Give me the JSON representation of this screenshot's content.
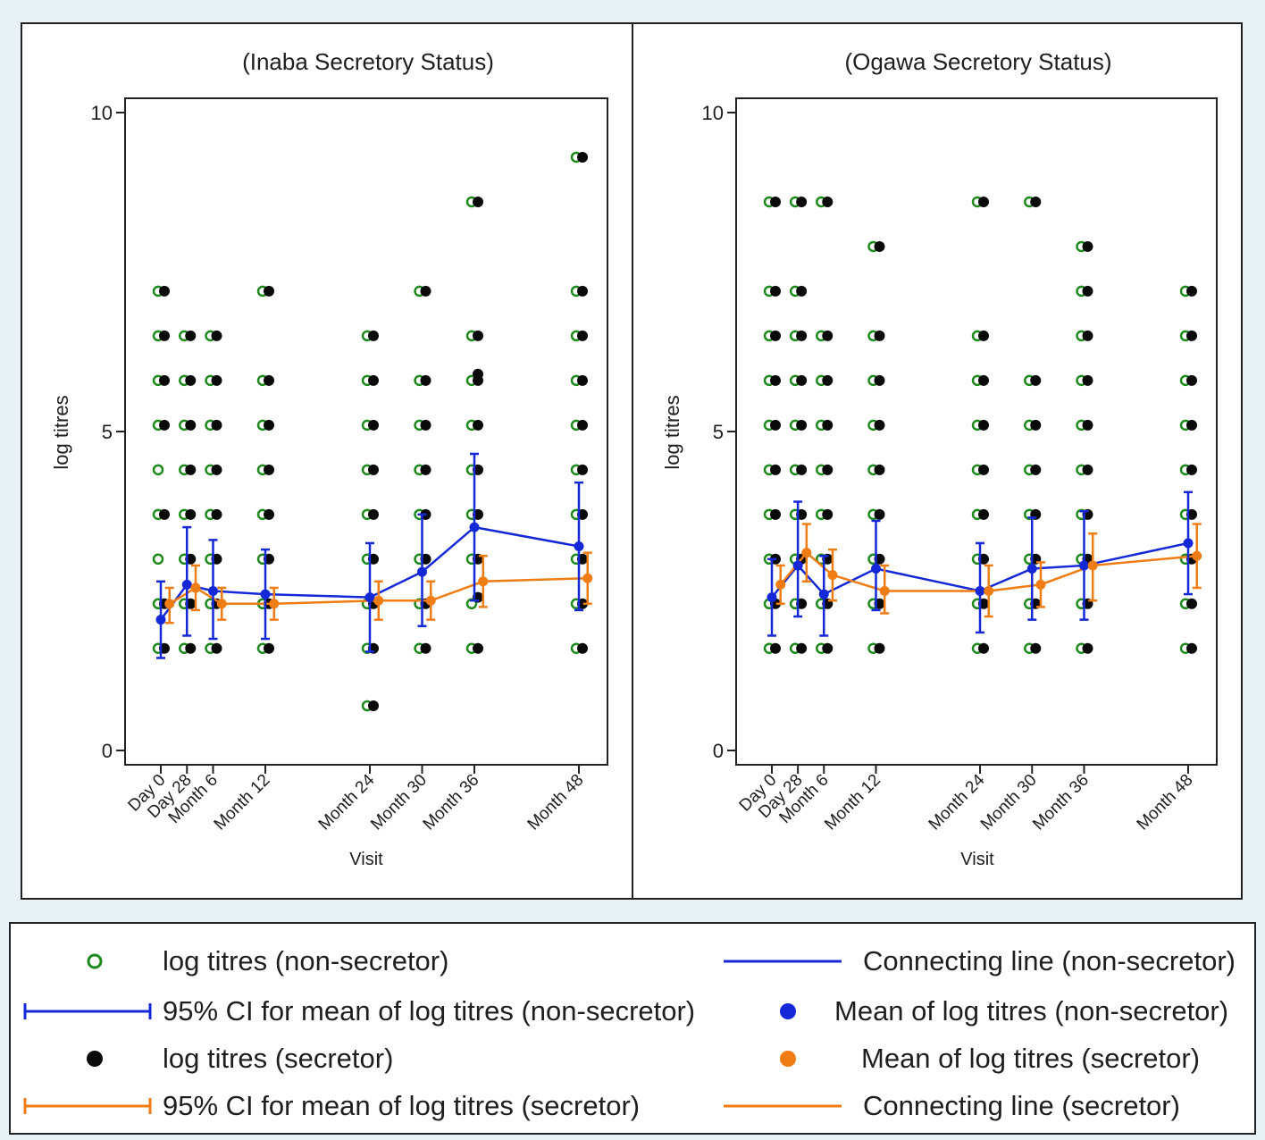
{
  "chart_data": [
    {
      "type": "scatter",
      "title": "(Inaba Secretory Status)",
      "xlabel": "Visit",
      "ylabel": "log titres",
      "ylim": [
        0,
        10
      ],
      "yticks": [
        0,
        5,
        10
      ],
      "visits": [
        {
          "label": "Day 0",
          "x": 0
        },
        {
          "label": "Day 28",
          "x": 1
        },
        {
          "label": "Month 6",
          "x": 6
        },
        {
          "label": "Month 12",
          "x": 12
        },
        {
          "label": "Month 24",
          "x": 24
        },
        {
          "label": "Month 30",
          "x": 30
        },
        {
          "label": "Month 36",
          "x": 36
        },
        {
          "label": "Month 48",
          "x": 48
        }
      ],
      "xlim": [
        -4,
        52
      ],
      "non_secretor_points": [
        {
          "x": 0,
          "y": [
            1.6,
            2.3,
            3.0,
            3.7,
            4.4,
            5.1,
            5.8,
            6.5,
            7.2
          ]
        },
        {
          "x": 3,
          "y": [
            1.6,
            2.3,
            3.0,
            3.7,
            4.4,
            5.1,
            5.8,
            6.5
          ]
        },
        {
          "x": 6,
          "y": [
            1.6,
            2.3,
            3.0,
            3.7,
            4.4,
            5.1,
            5.8,
            6.5
          ]
        },
        {
          "x": 12,
          "y": [
            1.6,
            2.3,
            3.0,
            3.7,
            4.4,
            5.1,
            5.8,
            7.2
          ]
        },
        {
          "x": 24,
          "y": [
            0.7,
            1.6,
            2.3,
            3.0,
            3.7,
            4.4,
            5.1,
            5.8,
            6.5
          ]
        },
        {
          "x": 30,
          "y": [
            1.6,
            2.3,
            3.0,
            3.7,
            4.4,
            5.1,
            5.8,
            7.2
          ]
        },
        {
          "x": 36,
          "y": [
            1.6,
            2.3,
            3.0,
            3.7,
            4.4,
            5.1,
            5.8,
            6.5,
            8.6
          ]
        },
        {
          "x": 48,
          "y": [
            1.6,
            2.3,
            3.0,
            3.7,
            4.4,
            5.1,
            5.8,
            6.5,
            7.2,
            9.3
          ]
        }
      ],
      "secretor_points": [
        {
          "x": 0,
          "y": [
            1.6,
            2.3,
            3.7,
            5.1,
            5.8,
            6.5,
            7.2
          ]
        },
        {
          "x": 3,
          "y": [
            1.6,
            2.3,
            3.0,
            3.7,
            4.4,
            5.1,
            5.8,
            6.5
          ]
        },
        {
          "x": 6,
          "y": [
            1.6,
            2.3,
            3.0,
            3.7,
            4.4,
            5.1,
            5.8,
            6.5
          ]
        },
        {
          "x": 12,
          "y": [
            1.6,
            2.3,
            3.0,
            3.7,
            4.4,
            5.1,
            5.8,
            7.2
          ]
        },
        {
          "x": 24,
          "y": [
            0.7,
            1.6,
            2.3,
            3.0,
            3.7,
            4.4,
            5.1,
            5.8,
            6.5
          ]
        },
        {
          "x": 30,
          "y": [
            1.6,
            2.3,
            3.0,
            3.7,
            4.4,
            5.1,
            5.8,
            7.2
          ]
        },
        {
          "x": 36,
          "y": [
            1.6,
            2.4,
            3.0,
            3.7,
            4.4,
            5.1,
            5.8,
            5.9,
            6.5,
            8.6
          ]
        },
        {
          "x": 48,
          "y": [
            1.6,
            2.3,
            3.0,
            3.7,
            4.4,
            5.1,
            5.8,
            6.5,
            7.2,
            9.3
          ]
        }
      ],
      "non_secretor_mean": [
        {
          "x": 0,
          "mean": 2.05,
          "lo": 1.45,
          "hi": 2.65
        },
        {
          "x": 3,
          "mean": 2.6,
          "lo": 1.8,
          "hi": 3.5
        },
        {
          "x": 6,
          "mean": 2.5,
          "lo": 1.75,
          "hi": 3.3
        },
        {
          "x": 12,
          "mean": 2.45,
          "lo": 1.75,
          "hi": 3.15
        },
        {
          "x": 24,
          "mean": 2.4,
          "lo": 1.55,
          "hi": 3.25
        },
        {
          "x": 30,
          "mean": 2.8,
          "lo": 1.95,
          "hi": 3.7
        },
        {
          "x": 36,
          "mean": 3.5,
          "lo": 2.35,
          "hi": 4.65
        },
        {
          "x": 48,
          "mean": 3.2,
          "lo": 2.2,
          "hi": 4.2
        }
      ],
      "secretor_mean": [
        {
          "x": 1,
          "mean": 2.3,
          "lo": 2.0,
          "hi": 2.55
        },
        {
          "x": 4,
          "mean": 2.55,
          "lo": 2.2,
          "hi": 2.9
        },
        {
          "x": 7,
          "mean": 2.3,
          "lo": 2.05,
          "hi": 2.55
        },
        {
          "x": 13,
          "mean": 2.3,
          "lo": 2.05,
          "hi": 2.55
        },
        {
          "x": 25,
          "mean": 2.35,
          "lo": 2.05,
          "hi": 2.65
        },
        {
          "x": 31,
          "mean": 2.35,
          "lo": 2.05,
          "hi": 2.65
        },
        {
          "x": 37,
          "mean": 2.65,
          "lo": 2.25,
          "hi": 3.05
        },
        {
          "x": 49,
          "mean": 2.7,
          "lo": 2.3,
          "hi": 3.1
        }
      ]
    },
    {
      "type": "scatter",
      "title": "(Ogawa Secretory Status)",
      "xlabel": "Visit",
      "ylabel": "log titres",
      "ylim": [
        0,
        10
      ],
      "yticks": [
        0,
        5,
        10
      ],
      "visits": [
        {
          "label": "Day 0",
          "x": 0
        },
        {
          "label": "Day 28",
          "x": 1
        },
        {
          "label": "Month 6",
          "x": 6
        },
        {
          "label": "Month 12",
          "x": 12
        },
        {
          "label": "Month 24",
          "x": 24
        },
        {
          "label": "Month 30",
          "x": 30
        },
        {
          "label": "Month 36",
          "x": 36
        },
        {
          "label": "Month 48",
          "x": 48
        }
      ],
      "xlim": [
        -4,
        52
      ],
      "non_secretor_points": [
        {
          "x": 0,
          "y": [
            1.6,
            2.3,
            3.0,
            3.7,
            4.4,
            5.1,
            5.8,
            6.5,
            7.2,
            8.6
          ]
        },
        {
          "x": 3,
          "y": [
            1.6,
            2.3,
            3.0,
            3.7,
            4.4,
            5.1,
            5.8,
            6.5,
            7.2,
            8.6
          ]
        },
        {
          "x": 6,
          "y": [
            1.6,
            2.3,
            3.0,
            3.7,
            4.4,
            5.1,
            5.8,
            6.5,
            8.6
          ]
        },
        {
          "x": 12,
          "y": [
            1.6,
            2.3,
            3.0,
            3.7,
            4.4,
            5.1,
            5.8,
            6.5,
            7.9
          ]
        },
        {
          "x": 24,
          "y": [
            1.6,
            2.3,
            3.0,
            3.7,
            4.4,
            5.1,
            5.8,
            6.5,
            8.6
          ]
        },
        {
          "x": 30,
          "y": [
            1.6,
            2.3,
            3.0,
            3.7,
            4.4,
            5.1,
            5.8,
            8.6
          ]
        },
        {
          "x": 36,
          "y": [
            1.6,
            2.3,
            3.0,
            3.7,
            4.4,
            5.1,
            5.8,
            6.5,
            7.2,
            7.9
          ]
        },
        {
          "x": 48,
          "y": [
            1.6,
            2.3,
            3.0,
            3.7,
            4.4,
            5.1,
            5.8,
            6.5,
            7.2
          ]
        }
      ],
      "secretor_points": [
        {
          "x": 0,
          "y": [
            1.6,
            2.3,
            3.0,
            3.7,
            4.4,
            5.1,
            5.8,
            6.5,
            7.2,
            8.6
          ]
        },
        {
          "x": 3,
          "y": [
            1.6,
            2.3,
            3.0,
            3.7,
            4.4,
            5.1,
            5.8,
            6.5,
            7.2,
            8.6
          ]
        },
        {
          "x": 6,
          "y": [
            1.6,
            2.3,
            3.0,
            3.7,
            4.4,
            5.1,
            5.8,
            6.5,
            8.6
          ]
        },
        {
          "x": 12,
          "y": [
            1.6,
            2.3,
            3.0,
            3.7,
            4.4,
            5.1,
            5.8,
            6.5,
            7.9
          ]
        },
        {
          "x": 24,
          "y": [
            1.6,
            2.3,
            3.0,
            3.7,
            4.4,
            5.1,
            5.8,
            6.5,
            8.6
          ]
        },
        {
          "x": 30,
          "y": [
            1.6,
            2.3,
            3.0,
            3.7,
            4.4,
            5.1,
            5.8,
            8.6
          ]
        },
        {
          "x": 36,
          "y": [
            1.6,
            2.3,
            3.0,
            3.7,
            4.4,
            5.1,
            5.8,
            6.5,
            7.2,
            7.9
          ]
        },
        {
          "x": 48,
          "y": [
            1.6,
            2.3,
            3.0,
            3.7,
            4.4,
            5.1,
            5.8,
            6.5,
            7.2
          ]
        }
      ],
      "non_secretor_mean": [
        {
          "x": 0,
          "mean": 2.4,
          "lo": 1.8,
          "hi": 3.0
        },
        {
          "x": 3,
          "mean": 2.9,
          "lo": 2.1,
          "hi": 3.9
        },
        {
          "x": 6,
          "mean": 2.45,
          "lo": 1.8,
          "hi": 3.05
        },
        {
          "x": 12,
          "mean": 2.85,
          "lo": 2.2,
          "hi": 3.6
        },
        {
          "x": 24,
          "mean": 2.5,
          "lo": 1.85,
          "hi": 3.25
        },
        {
          "x": 30,
          "mean": 2.85,
          "lo": 2.05,
          "hi": 3.65
        },
        {
          "x": 36,
          "mean": 2.9,
          "lo": 2.05,
          "hi": 3.75
        },
        {
          "x": 48,
          "mean": 3.25,
          "lo": 2.45,
          "hi": 4.05
        }
      ],
      "secretor_mean": [
        {
          "x": 1,
          "mean": 2.6,
          "lo": 2.3,
          "hi": 2.9
        },
        {
          "x": 4,
          "mean": 3.1,
          "lo": 2.65,
          "hi": 3.55
        },
        {
          "x": 7,
          "mean": 2.75,
          "lo": 2.35,
          "hi": 3.15
        },
        {
          "x": 13,
          "mean": 2.5,
          "lo": 2.15,
          "hi": 2.9
        },
        {
          "x": 25,
          "mean": 2.5,
          "lo": 2.1,
          "hi": 2.9
        },
        {
          "x": 31,
          "mean": 2.6,
          "lo": 2.25,
          "hi": 2.95
        },
        {
          "x": 37,
          "mean": 2.9,
          "lo": 2.35,
          "hi": 3.4
        },
        {
          "x": 49,
          "mean": 3.05,
          "lo": 2.55,
          "hi": 3.55
        }
      ]
    }
  ],
  "colors": {
    "non_secretor_point": "#1e8a1e",
    "secretor_point": "#0a0a0a",
    "non_secretor_line": "#1428d8",
    "secretor_line": "#f07d14",
    "axis": "#222222",
    "text": "#1e1e1e"
  },
  "legend": {
    "items": [
      {
        "label": "log titres (non-secretor)",
        "symbol": "hollow-green-circle"
      },
      {
        "label": "Connecting line (non-secretor)",
        "symbol": "blue-line"
      },
      {
        "label": "95% CI for mean of log titres (non-secretor)",
        "symbol": "blue-capped-line"
      },
      {
        "label": "Mean of log titres (non-secretor)",
        "symbol": "blue-dot"
      },
      {
        "label": "log titres (secretor)",
        "symbol": "black-dot"
      },
      {
        "label": "Mean of log titres (secretor)",
        "symbol": "orange-dot"
      },
      {
        "label": "95% CI for mean of log titres (secretor)",
        "symbol": "orange-capped-line"
      },
      {
        "label": "Connecting line (secretor)",
        "symbol": "orange-line"
      }
    ]
  }
}
